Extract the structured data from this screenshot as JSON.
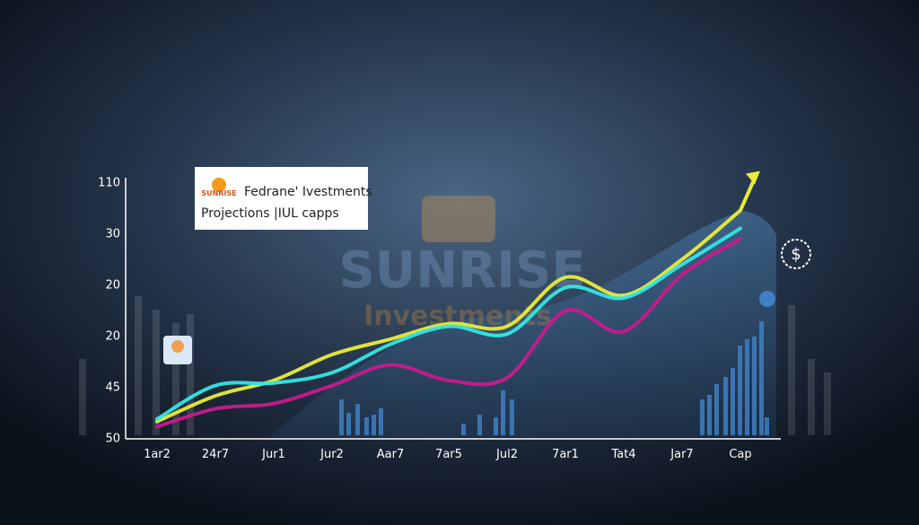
{
  "chart_data": {
    "type": "line",
    "brand": "SUNRISE",
    "title": "Fedrane' Ivestments",
    "subtitle": "Projections |IUL capps",
    "watermark": [
      "SUNRISE",
      "Investments"
    ],
    "y_axis_labels": [
      "110",
      "30",
      "20",
      "20",
      "45",
      "50"
    ],
    "ylim": [
      0,
      100
    ],
    "categories": [
      "1ar2",
      "24r7",
      "Jur1",
      "Jur2",
      "Aar7",
      "7ar5",
      "Jul2",
      "7ar1",
      "Tat4",
      "Jar7",
      "Cap"
    ],
    "series": [
      {
        "color": "#e8ec3a",
        "values": [
          6,
          16,
          22,
          32,
          38,
          44,
          43,
          62,
          55,
          69,
          88
        ]
      },
      {
        "color": "#35e6e6",
        "values": [
          7,
          20,
          21,
          25,
          36,
          43,
          40,
          58,
          54,
          67,
          81
        ]
      },
      {
        "color": "#c81a8c",
        "values": [
          4,
          11,
          13,
          20,
          28,
          22,
          23,
          49,
          41,
          63,
          77
        ]
      }
    ]
  }
}
